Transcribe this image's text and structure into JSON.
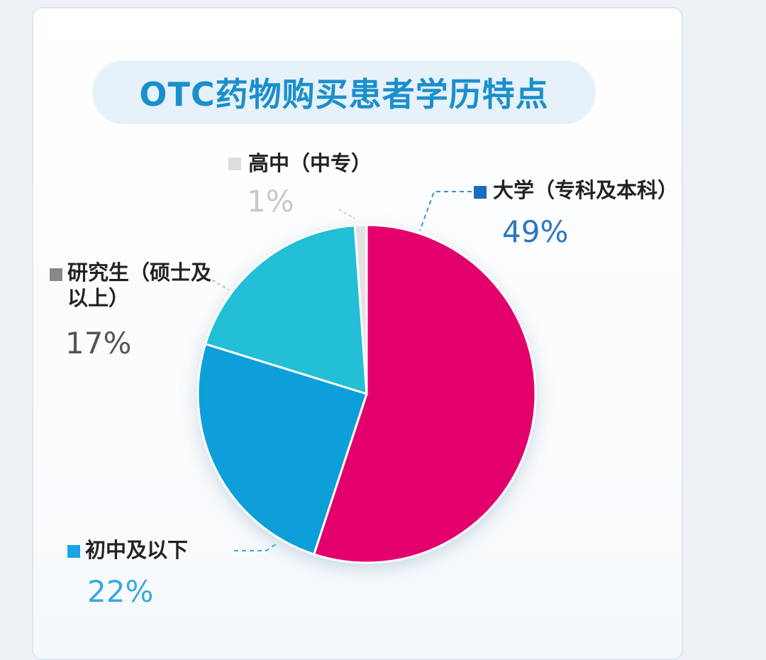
{
  "chart_data": {
    "type": "pie",
    "title": "OTC药物购买患者学历特点",
    "categories": [
      "大学（专科及本科）",
      "初中及以下",
      "研究生（硕士及以上）",
      "高中（中专）"
    ],
    "values": [
      49,
      22,
      17,
      1
    ],
    "value_labels": [
      "49%",
      "22%",
      "17%",
      "1%"
    ],
    "colors": [
      "#e4006c",
      "#0b9fd9",
      "#20bfd6",
      "#e2e2e2"
    ],
    "legend_colors": [
      "#1a6cc0",
      "#1aa3e6",
      "#888888",
      "#dddddd"
    ],
    "label_colors": [
      "#2a77c2",
      "#3aa7e0",
      "#555555",
      "#c8c8c8"
    ]
  }
}
